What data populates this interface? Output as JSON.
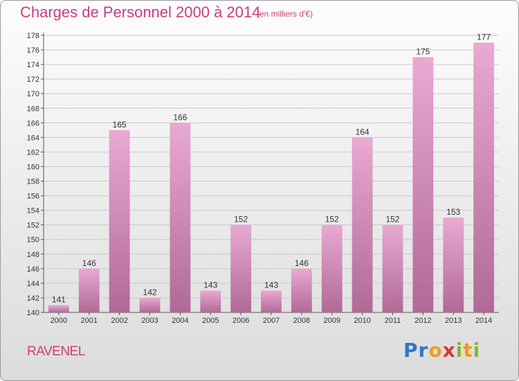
{
  "title": "Charges de Personnel 2000 à 2014",
  "subtitle": "(en milliers d'€)",
  "location": "RAVENEL",
  "logo": {
    "letters": [
      "P",
      "r",
      "o",
      "x",
      "i",
      "t",
      "i"
    ],
    "colors": [
      "#2e78c6",
      "#2e78c6",
      "#f39a1b",
      "#d83a3a",
      "#7fba2d",
      "#f39a1b",
      "#7fba2d"
    ]
  },
  "colors": {
    "text": "#cc3d7e",
    "bar_top": "#e8a9d2",
    "bar_bottom": "#b06a96",
    "grid": "#c8c8c8"
  },
  "chart_data": {
    "type": "bar",
    "categories": [
      "2000",
      "2001",
      "2002",
      "2003",
      "2004",
      "2005",
      "2006",
      "2007",
      "2008",
      "2009",
      "2010",
      "2011",
      "2012",
      "2013",
      "2014"
    ],
    "values": [
      141,
      146,
      165,
      142,
      166,
      143,
      152,
      143,
      146,
      152,
      164,
      152,
      175,
      153,
      177
    ],
    "title": "Charges de Personnel 2000 à 2014",
    "subtitle": "(en milliers d'€)",
    "xlabel": "",
    "ylabel": "",
    "ylim": [
      140,
      178
    ],
    "yticks": [
      140,
      142,
      144,
      146,
      148,
      150,
      152,
      154,
      156,
      158,
      160,
      162,
      164,
      166,
      168,
      170,
      172,
      174,
      176,
      178
    ],
    "grid": true,
    "data_labels": true
  }
}
